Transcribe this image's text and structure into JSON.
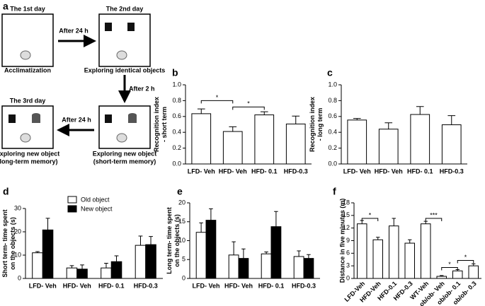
{
  "diagram": {
    "panel": "a",
    "boxes": [
      {
        "title": "The 1st day",
        "caption": [
          "Acclimatization"
        ]
      },
      {
        "title": "The 2nd day",
        "caption": [
          "Exploring identical objects"
        ]
      },
      {
        "title": "The 3rd day",
        "caption": [
          "Exploring new object",
          "(long-term memory)"
        ]
      },
      {
        "title": "",
        "caption": [
          "Exploring new object",
          "(short-term memory)"
        ]
      }
    ],
    "arrows": [
      "After 24 h",
      "After 2 h",
      "After 24 h"
    ]
  },
  "chart_data": [
    {
      "type": "bar",
      "panel": "b",
      "ylabel": [
        "Recognition index",
        "- short term"
      ],
      "categories": [
        "LFD- Veh",
        "HFD- Veh",
        "HFD- 0.1",
        "HFD-0.3"
      ],
      "values": [
        0.635,
        0.41,
        0.62,
        0.505
      ],
      "errors": [
        0.06,
        0.06,
        0.04,
        0.1
      ],
      "color": "#ffffff",
      "ylim": [
        0,
        1
      ],
      "yticks": [
        {
          "value": 0,
          "label": "0.0"
        },
        0.2,
        0.4,
        0.6,
        0.8,
        {
          "value": 1,
          "label": "1.0"
        }
      ],
      "annotations": [
        "*",
        "*"
      ]
    },
    {
      "type": "bar",
      "panel": "c",
      "ylabel": [
        "Recognition index",
        "- long term"
      ],
      "categories": [
        "LFD- Veh",
        "HFD- Veh",
        "HFD- 0.1",
        "HFD-0.3"
      ],
      "values": [
        0.555,
        0.44,
        0.625,
        0.495
      ],
      "errors": [
        0.02,
        0.08,
        0.1,
        0.115
      ],
      "color": "#ffffff",
      "ylim": [
        0,
        1
      ],
      "yticks": [
        {
          "value": 0,
          "label": "0.0"
        },
        0.2,
        0.4,
        0.6,
        0.8,
        {
          "value": 1,
          "label": "1.0"
        }
      ]
    },
    {
      "type": "grouped-bar",
      "panel": "d",
      "ylabel": [
        "Short term- time spent",
        "on the objects (s)"
      ],
      "categories": [
        "LFD- Veh",
        "HFD- Veh",
        "HFD- 0.1",
        "HFD-0.3"
      ],
      "series": [
        {
          "name": "Old object",
          "color": "#ffffff",
          "values": [
            11,
            4.5,
            4.5,
            14.2
          ],
          "errors": [
            0.5,
            1,
            2,
            4
          ]
        },
        {
          "name": "New object",
          "color": "#000000",
          "values": [
            20.8,
            4,
            7.2,
            14.5
          ],
          "errors": [
            5,
            1.8,
            2.5,
            3.5
          ]
        }
      ],
      "ylim": [
        0,
        30
      ],
      "yticks": [
        0,
        10,
        20,
        30
      ],
      "legend": "top"
    },
    {
      "type": "grouped-bar",
      "panel": "e",
      "ylabel": [
        "Long term- time spent",
        "on the objects (s)"
      ],
      "categories": [
        "LFD- Veh",
        "HFD- Veh",
        "HFD- 0.1",
        "HFD-0.3"
      ],
      "series": [
        {
          "color": "#ffffff",
          "values": [
            12.2,
            6.2,
            6.5,
            5.8
          ],
          "errors": [
            2.5,
            3.5,
            0.5,
            1.5
          ]
        },
        {
          "color": "#000000",
          "values": [
            15.4,
            5.3,
            13.7,
            5.3
          ],
          "errors": [
            3,
            2.5,
            4,
            1
          ]
        }
      ],
      "ylim": [
        0,
        20
      ],
      "yticks": [
        0,
        5,
        10,
        15,
        20
      ]
    },
    {
      "type": "bar",
      "panel": "f",
      "ylabel": [
        "Distance in five minutes (m)"
      ],
      "categories": [
        "LFD-Veh",
        "HFD-Veh",
        "HFD-0.1",
        "HFD-0.3",
        "WT-Veh",
        "ob/ob- Veh",
        "ob/ob- 0.1",
        "ob/ob- 0.3"
      ],
      "values": [
        13,
        9.2,
        12.5,
        8.4,
        13,
        0.5,
        1.8,
        3
      ],
      "errors": [
        0.8,
        0.6,
        1.8,
        0.8,
        0.6,
        0.2,
        0.3,
        0.5
      ],
      "color": "#ffffff",
      "ylim": [
        0,
        18
      ],
      "yticks": [
        0,
        3,
        6,
        9,
        12,
        15,
        18
      ],
      "annotations": [
        "*",
        "***",
        "*",
        "*"
      ]
    }
  ]
}
